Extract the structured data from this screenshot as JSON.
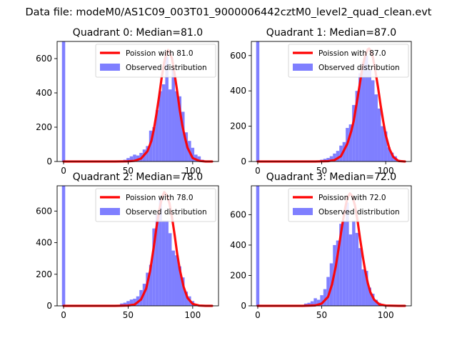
{
  "figure_title": "Data file: modeM0/AS1C09_003T01_9000006442cztM0_level2_quad_clean.evt",
  "colors": {
    "histogram": "#7f7fff",
    "poisson": "#ff0000"
  },
  "chart_data": [
    {
      "type": "bar",
      "title": "Quadrant 0: Median=81.0",
      "median": 81.0,
      "xlim": [
        -5,
        120
      ],
      "ylim": [
        0,
        700
      ],
      "xticks": [
        0,
        50,
        100
      ],
      "yticks": [
        0,
        200,
        400,
        600
      ],
      "bin_width": 2.5,
      "legend": {
        "position": "top-right",
        "entries": [
          "Poission with 81.0",
          "Observed distribution"
        ]
      },
      "histogram": [
        {
          "x": 0,
          "y": 700
        },
        {
          "x": 47.5,
          "y": 10
        },
        {
          "x": 50,
          "y": 20
        },
        {
          "x": 52.5,
          "y": 30
        },
        {
          "x": 55,
          "y": 40
        },
        {
          "x": 57.5,
          "y": 35
        },
        {
          "x": 60,
          "y": 50
        },
        {
          "x": 62.5,
          "y": 70
        },
        {
          "x": 65,
          "y": 90
        },
        {
          "x": 67.5,
          "y": 180
        },
        {
          "x": 70,
          "y": 200
        },
        {
          "x": 72.5,
          "y": 300
        },
        {
          "x": 75,
          "y": 410
        },
        {
          "x": 77.5,
          "y": 450
        },
        {
          "x": 80,
          "y": 610
        },
        {
          "x": 82.5,
          "y": 420
        },
        {
          "x": 85,
          "y": 540
        },
        {
          "x": 87.5,
          "y": 410
        },
        {
          "x": 90,
          "y": 380
        },
        {
          "x": 92.5,
          "y": 290
        },
        {
          "x": 95,
          "y": 170
        },
        {
          "x": 97.5,
          "y": 120
        },
        {
          "x": 100,
          "y": 80
        },
        {
          "x": 102.5,
          "y": 40
        },
        {
          "x": 105,
          "y": 30
        },
        {
          "x": 107.5,
          "y": 10
        }
      ],
      "poisson": {
        "x": [
          0,
          40,
          50,
          55,
          60,
          65,
          68,
          70,
          72,
          74,
          76,
          78,
          80,
          81,
          82,
          84,
          86,
          88,
          90,
          92,
          94,
          96,
          100,
          105,
          110,
          115
        ],
        "y": [
          0,
          0,
          1,
          4,
          17,
          60,
          120,
          190,
          280,
          380,
          490,
          580,
          640,
          650,
          640,
          600,
          510,
          410,
          300,
          210,
          140,
          80,
          20,
          4,
          0,
          0
        ]
      }
    },
    {
      "type": "bar",
      "title": "Quadrant 1: Median=87.0",
      "median": 87.0,
      "xlim": [
        -5,
        120
      ],
      "ylim": [
        0,
        680
      ],
      "xticks": [
        0,
        50,
        100
      ],
      "yticks": [
        0,
        200,
        400,
        600
      ],
      "bin_width": 2.5,
      "legend": {
        "position": "top-right",
        "entries": [
          "Poission with 87.0",
          "Observed distribution"
        ]
      },
      "histogram": [
        {
          "x": 0,
          "y": 680
        },
        {
          "x": 50,
          "y": 10
        },
        {
          "x": 52.5,
          "y": 15
        },
        {
          "x": 55,
          "y": 20
        },
        {
          "x": 57.5,
          "y": 30
        },
        {
          "x": 60,
          "y": 45
        },
        {
          "x": 62.5,
          "y": 60
        },
        {
          "x": 65,
          "y": 90
        },
        {
          "x": 67.5,
          "y": 110
        },
        {
          "x": 70,
          "y": 190
        },
        {
          "x": 72.5,
          "y": 210
        },
        {
          "x": 75,
          "y": 320
        },
        {
          "x": 77.5,
          "y": 400
        },
        {
          "x": 80,
          "y": 500
        },
        {
          "x": 82.5,
          "y": 560
        },
        {
          "x": 85,
          "y": 600
        },
        {
          "x": 87.5,
          "y": 520
        },
        {
          "x": 90,
          "y": 460
        },
        {
          "x": 92.5,
          "y": 380
        },
        {
          "x": 95,
          "y": 300
        },
        {
          "x": 97.5,
          "y": 200
        },
        {
          "x": 100,
          "y": 170
        },
        {
          "x": 102.5,
          "y": 80
        },
        {
          "x": 105,
          "y": 50
        },
        {
          "x": 107.5,
          "y": 30
        },
        {
          "x": 110,
          "y": 10
        }
      ],
      "poisson": {
        "x": [
          0,
          45,
          55,
          60,
          65,
          70,
          73,
          75,
          78,
          80,
          82,
          84,
          86,
          87,
          88,
          90,
          92,
          94,
          96,
          98,
          100,
          103,
          106,
          110,
          115
        ],
        "y": [
          0,
          0,
          2,
          8,
          30,
          100,
          170,
          230,
          360,
          450,
          540,
          600,
          635,
          640,
          630,
          590,
          510,
          420,
          320,
          230,
          150,
          70,
          25,
          3,
          0
        ]
      }
    },
    {
      "type": "bar",
      "title": "Quadrant 2: Median=78.0",
      "median": 78.0,
      "xlim": [
        -5,
        120
      ],
      "ylim": [
        0,
        760
      ],
      "xticks": [
        0,
        50,
        100
      ],
      "yticks": [
        0,
        200,
        400,
        600
      ],
      "bin_width": 2.5,
      "legend": {
        "position": "top-right",
        "entries": [
          "Poission with 78.0",
          "Observed distribution"
        ]
      },
      "histogram": [
        {
          "x": 0,
          "y": 760
        },
        {
          "x": 45,
          "y": 15
        },
        {
          "x": 47.5,
          "y": 20
        },
        {
          "x": 50,
          "y": 30
        },
        {
          "x": 52.5,
          "y": 40
        },
        {
          "x": 55,
          "y": 45
        },
        {
          "x": 57.5,
          "y": 60
        },
        {
          "x": 60,
          "y": 100
        },
        {
          "x": 62.5,
          "y": 140
        },
        {
          "x": 65,
          "y": 210
        },
        {
          "x": 67.5,
          "y": 260
        },
        {
          "x": 70,
          "y": 490
        },
        {
          "x": 72.5,
          "y": 580
        },
        {
          "x": 75,
          "y": 680
        },
        {
          "x": 77.5,
          "y": 540
        },
        {
          "x": 80,
          "y": 540
        },
        {
          "x": 82.5,
          "y": 460
        },
        {
          "x": 85,
          "y": 350
        },
        {
          "x": 87.5,
          "y": 320
        },
        {
          "x": 90,
          "y": 250
        },
        {
          "x": 92.5,
          "y": 180
        },
        {
          "x": 95,
          "y": 90
        },
        {
          "x": 97.5,
          "y": 60
        },
        {
          "x": 100,
          "y": 30
        },
        {
          "x": 102.5,
          "y": 10
        }
      ],
      "poisson": {
        "x": [
          0,
          40,
          50,
          55,
          60,
          64,
          67,
          70,
          72,
          74,
          76,
          78,
          80,
          82,
          84,
          86,
          88,
          90,
          93,
          96,
          100,
          105,
          110,
          115
        ],
        "y": [
          0,
          0,
          2,
          8,
          40,
          110,
          220,
          380,
          500,
          600,
          680,
          720,
          700,
          650,
          560,
          450,
          330,
          230,
          120,
          50,
          12,
          2,
          0,
          0
        ]
      }
    },
    {
      "type": "bar",
      "title": "Quadrant 3: Median=72.0",
      "median": 72.0,
      "xlim": [
        -5,
        120
      ],
      "ylim": [
        0,
        790
      ],
      "xticks": [
        0,
        50,
        100
      ],
      "yticks": [
        0,
        200,
        400,
        600
      ],
      "bin_width": 2.5,
      "legend": {
        "position": "top-right",
        "entries": [
          "Poission with 72.0",
          "Observed distribution"
        ]
      },
      "histogram": [
        {
          "x": 0,
          "y": 790
        },
        {
          "x": 37.5,
          "y": 15
        },
        {
          "x": 40,
          "y": 20
        },
        {
          "x": 42.5,
          "y": 30
        },
        {
          "x": 45,
          "y": 50
        },
        {
          "x": 47.5,
          "y": 40
        },
        {
          "x": 50,
          "y": 70
        },
        {
          "x": 52.5,
          "y": 110
        },
        {
          "x": 55,
          "y": 190
        },
        {
          "x": 57.5,
          "y": 280
        },
        {
          "x": 60,
          "y": 400
        },
        {
          "x": 62.5,
          "y": 430
        },
        {
          "x": 65,
          "y": 540
        },
        {
          "x": 67.5,
          "y": 560
        },
        {
          "x": 70,
          "y": 680
        },
        {
          "x": 72.5,
          "y": 470
        },
        {
          "x": 75,
          "y": 560
        },
        {
          "x": 77.5,
          "y": 480
        },
        {
          "x": 80,
          "y": 380
        },
        {
          "x": 82.5,
          "y": 240
        },
        {
          "x": 85,
          "y": 230
        },
        {
          "x": 87.5,
          "y": 120
        },
        {
          "x": 90,
          "y": 80
        },
        {
          "x": 92.5,
          "y": 40
        },
        {
          "x": 95,
          "y": 20
        },
        {
          "x": 97.5,
          "y": 10
        }
      ],
      "poisson": {
        "x": [
          0,
          35,
          45,
          50,
          55,
          58,
          61,
          64,
          66,
          68,
          70,
          72,
          74,
          76,
          78,
          80,
          82,
          84,
          86,
          88,
          91,
          95,
          100,
          110,
          115
        ],
        "y": [
          0,
          0,
          3,
          15,
          60,
          140,
          260,
          420,
          530,
          630,
          710,
          740,
          720,
          660,
          560,
          440,
          330,
          230,
          150,
          90,
          40,
          10,
          2,
          0,
          0
        ]
      }
    }
  ]
}
